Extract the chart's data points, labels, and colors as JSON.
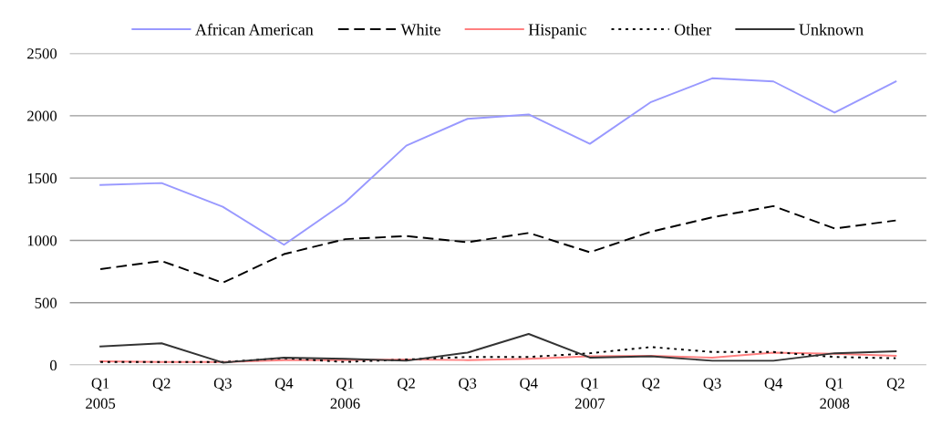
{
  "chart_data": {
    "type": "line",
    "categories": [
      "Q1\n2005",
      "Q2",
      "Q3",
      "Q4",
      "Q1\n2006",
      "Q2",
      "Q3",
      "Q4",
      "Q1\n2007",
      "Q2",
      "Q3",
      "Q4",
      "Q1\n2008",
      "Q2"
    ],
    "series": [
      {
        "name": "African American",
        "color": "#9999ff",
        "line_style": "solid",
        "values": [
          1445,
          1460,
          1270,
          965,
          1305,
          1760,
          1975,
          2010,
          1775,
          2110,
          2300,
          2275,
          2025,
          2275
        ]
      },
      {
        "name": "White",
        "color": "#000000",
        "line_style": "dashed",
        "values": [
          770,
          835,
          660,
          890,
          1010,
          1035,
          985,
          1060,
          905,
          1070,
          1185,
          1275,
          1095,
          1160
        ]
      },
      {
        "name": "Hispanic",
        "color": "#ff8080",
        "line_style": "solid",
        "values": [
          30,
          25,
          25,
          40,
          40,
          45,
          40,
          50,
          70,
          75,
          60,
          100,
          90,
          75
        ]
      },
      {
        "name": "Other",
        "color": "#000000",
        "line_style": "dotted",
        "values": [
          25,
          25,
          25,
          55,
          25,
          45,
          65,
          65,
          95,
          145,
          105,
          105,
          65,
          55
        ]
      },
      {
        "name": "Unknown",
        "color": "#333333",
        "line_style": "solid",
        "values": [
          150,
          175,
          20,
          60,
          50,
          35,
          100,
          250,
          60,
          70,
          35,
          35,
          95,
          110
        ]
      }
    ],
    "ylim": [
      0,
      2500
    ],
    "yticks": [
      0,
      500,
      1000,
      1500,
      2000,
      2500
    ],
    "grid": "y",
    "legend": "top",
    "marker": "none"
  }
}
